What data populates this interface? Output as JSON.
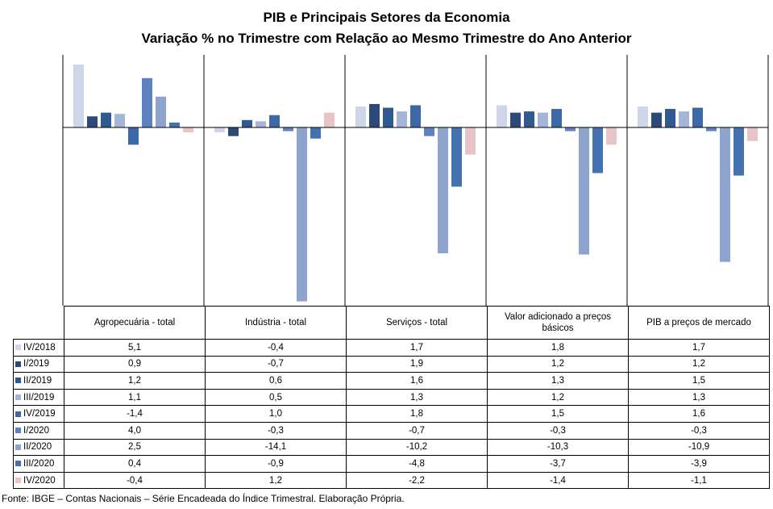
{
  "title": "PIB e Principais  Setores da Economia",
  "subtitle": "Variação % no Trimestre com Relação ao Mesmo Trimestre do Ano Anterior",
  "source": "Fonte: IBGE – Contas Nacionais – Série Encadeada do Índice Trimestral. Elaboração Própria.",
  "chart_data": {
    "type": "bar",
    "categories": [
      "Agropecuária - total",
      "Indústria - total",
      "Serviços - total",
      "Valor adicionado a preços básicos",
      "PIB a preços de mercado"
    ],
    "series": [
      {
        "name": "IV/2018",
        "color": "#cdd7e9",
        "values": [
          5.1,
          -0.4,
          1.7,
          1.8,
          1.7
        ]
      },
      {
        "name": "I/2019",
        "color": "#2c4a78",
        "values": [
          0.9,
          -0.7,
          1.9,
          1.2,
          1.2
        ]
      },
      {
        "name": "II/2019",
        "color": "#2f5a8f",
        "values": [
          1.2,
          0.6,
          1.6,
          1.3,
          1.5
        ]
      },
      {
        "name": "III/2019",
        "color": "#a4b5d7",
        "values": [
          1.1,
          0.5,
          1.3,
          1.2,
          1.3
        ]
      },
      {
        "name": "IV/2019",
        "color": "#3d68a8",
        "values": [
          -1.4,
          1.0,
          1.8,
          1.5,
          1.6
        ]
      },
      {
        "name": "I/2020",
        "color": "#5e82bf",
        "values": [
          4.0,
          -0.3,
          -0.7,
          -0.3,
          -0.3
        ]
      },
      {
        "name": "II/2020",
        "color": "#8ea4cf",
        "values": [
          2.5,
          -14.1,
          -10.2,
          -10.3,
          -10.9
        ]
      },
      {
        "name": "III/2020",
        "color": "#4472b0",
        "values": [
          0.4,
          -0.9,
          -4.8,
          -3.7,
          -3.9
        ]
      },
      {
        "name": "IV/2020",
        "color": "#e8c4c6",
        "values": [
          -0.4,
          1.2,
          -2.2,
          -1.4,
          -1.1
        ]
      }
    ],
    "table_values": [
      [
        "5,1",
        "-0,4",
        "1,7",
        "1,8",
        "1,7"
      ],
      [
        "0,9",
        "-0,7",
        "1,9",
        "1,2",
        "1,2"
      ],
      [
        "1,2",
        "0,6",
        "1,6",
        "1,3",
        "1,5"
      ],
      [
        "1,1",
        "0,5",
        "1,3",
        "1,2",
        "1,3"
      ],
      [
        "-1,4",
        "1,0",
        "1,8",
        "1,5",
        "1,6"
      ],
      [
        "4,0",
        "-0,3",
        "-0,7",
        "-0,3",
        "-0,3"
      ],
      [
        "2,5",
        "-14,1",
        "-10,2",
        "-10,3",
        "-10,9"
      ],
      [
        "0,4",
        "-0,9",
        "-4,8",
        "-3,7",
        "-3,9"
      ],
      [
        "-0,4",
        "1,2",
        "-2,2",
        "-1,4",
        "-1,1"
      ]
    ],
    "ylim": [
      -14.5,
      6.0
    ],
    "grid": false,
    "legend": "table-rows"
  }
}
